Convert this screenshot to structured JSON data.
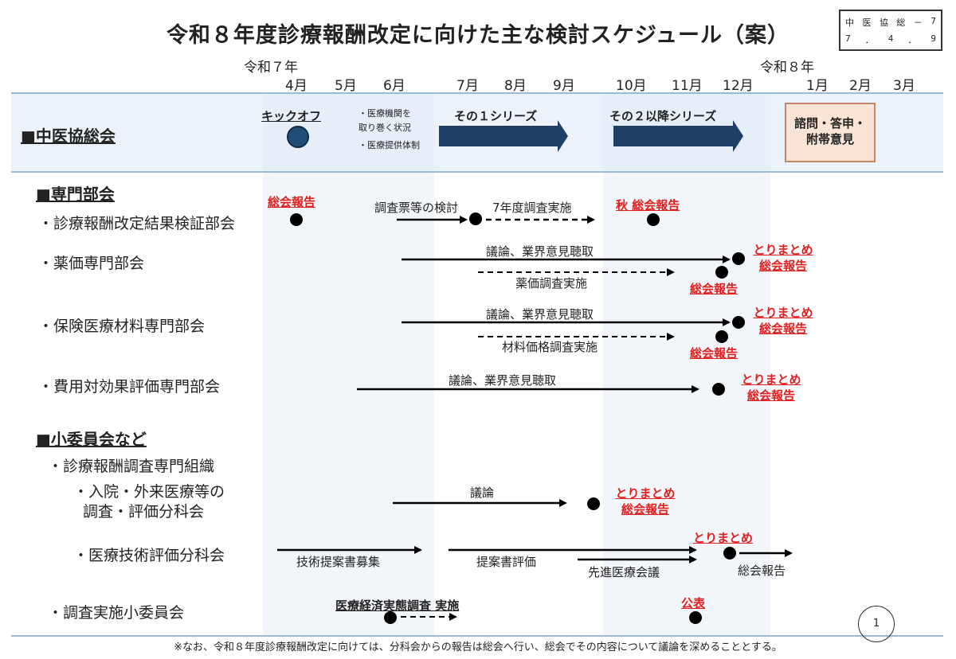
{
  "title": "令和８年度診療報酬改定に向けた主な検討スケジュール（案）",
  "stamp": {
    "line1": [
      "中",
      "医",
      "協",
      "総",
      "－",
      "7"
    ],
    "line2": [
      "7",
      "．",
      "4",
      "．",
      "9"
    ]
  },
  "timeline": {
    "era_start": "令和７年",
    "era_end": "令和８年",
    "months": [
      "4月",
      "5月",
      "6月",
      "7月",
      "8月",
      "9月",
      "10月",
      "11月",
      "12月",
      "1月",
      "2月",
      "3月"
    ]
  },
  "chuikyo": {
    "label": "■中医協総会",
    "kickoff": "キックオフ",
    "notes": [
      "・医療機関を",
      "取り巻く状況",
      "・医療提供体制"
    ],
    "series1": "その１シリーズ",
    "series2": "その２以降シリーズ",
    "recommendation": [
      "諮問・答申・",
      "附帯意見"
    ]
  },
  "senmon": {
    "heading": "■専門部会",
    "kensho": {
      "label": "・診療報酬改定結果検証部会",
      "report_left": "総会報告",
      "text1": "調査票等の検討",
      "text2": "7年度調査実施",
      "report_right": "秋 総会報告"
    },
    "yakka": {
      "label": "・薬価専門部会",
      "solid_text": "議論、業界意見聴取",
      "dashed_text": "薬価調査実施",
      "matome": "とりまとめ",
      "report1": "総会報告",
      "report2": "総会報告"
    },
    "zairyo": {
      "label": "・保険医療材料専門部会",
      "solid_text": "議論、業界意見聴取",
      "dashed_text": "材料価格調査実施",
      "matome": "とりまとめ",
      "report1": "総会報告",
      "report2": "総会報告"
    },
    "hiyo": {
      "label": "・費用対効果評価専門部会",
      "solid_text": "議論、業界意見聴取",
      "matome": "とりまとめ",
      "report": "総会報告"
    }
  },
  "shoiinkai": {
    "heading": "■小委員会など",
    "soshiki": "・診療報酬調査専門組織",
    "nyuin": {
      "label1": "・入院・外来医療等の",
      "label2": "調査・評価分科会",
      "text": "議論",
      "matome": "とりまとめ",
      "report": "総会報告"
    },
    "gijutsu": {
      "label": "・医療技術評価分科会",
      "text1": "技術提案書募集",
      "text2": "提案書評価",
      "text3": "先進医療会議",
      "matome": "とりまとめ",
      "report": "総会報告"
    },
    "chosa": {
      "label": "・調査実施小委員会",
      "survey": "医療経済実態調査 実施",
      "publish": "公表"
    }
  },
  "footnote": "※なお、令和８年度診療報酬改定に向けては、分科会からの報告は総会へ行い、総会でその内容について議論を深めることとする。",
  "page_number": "1"
}
